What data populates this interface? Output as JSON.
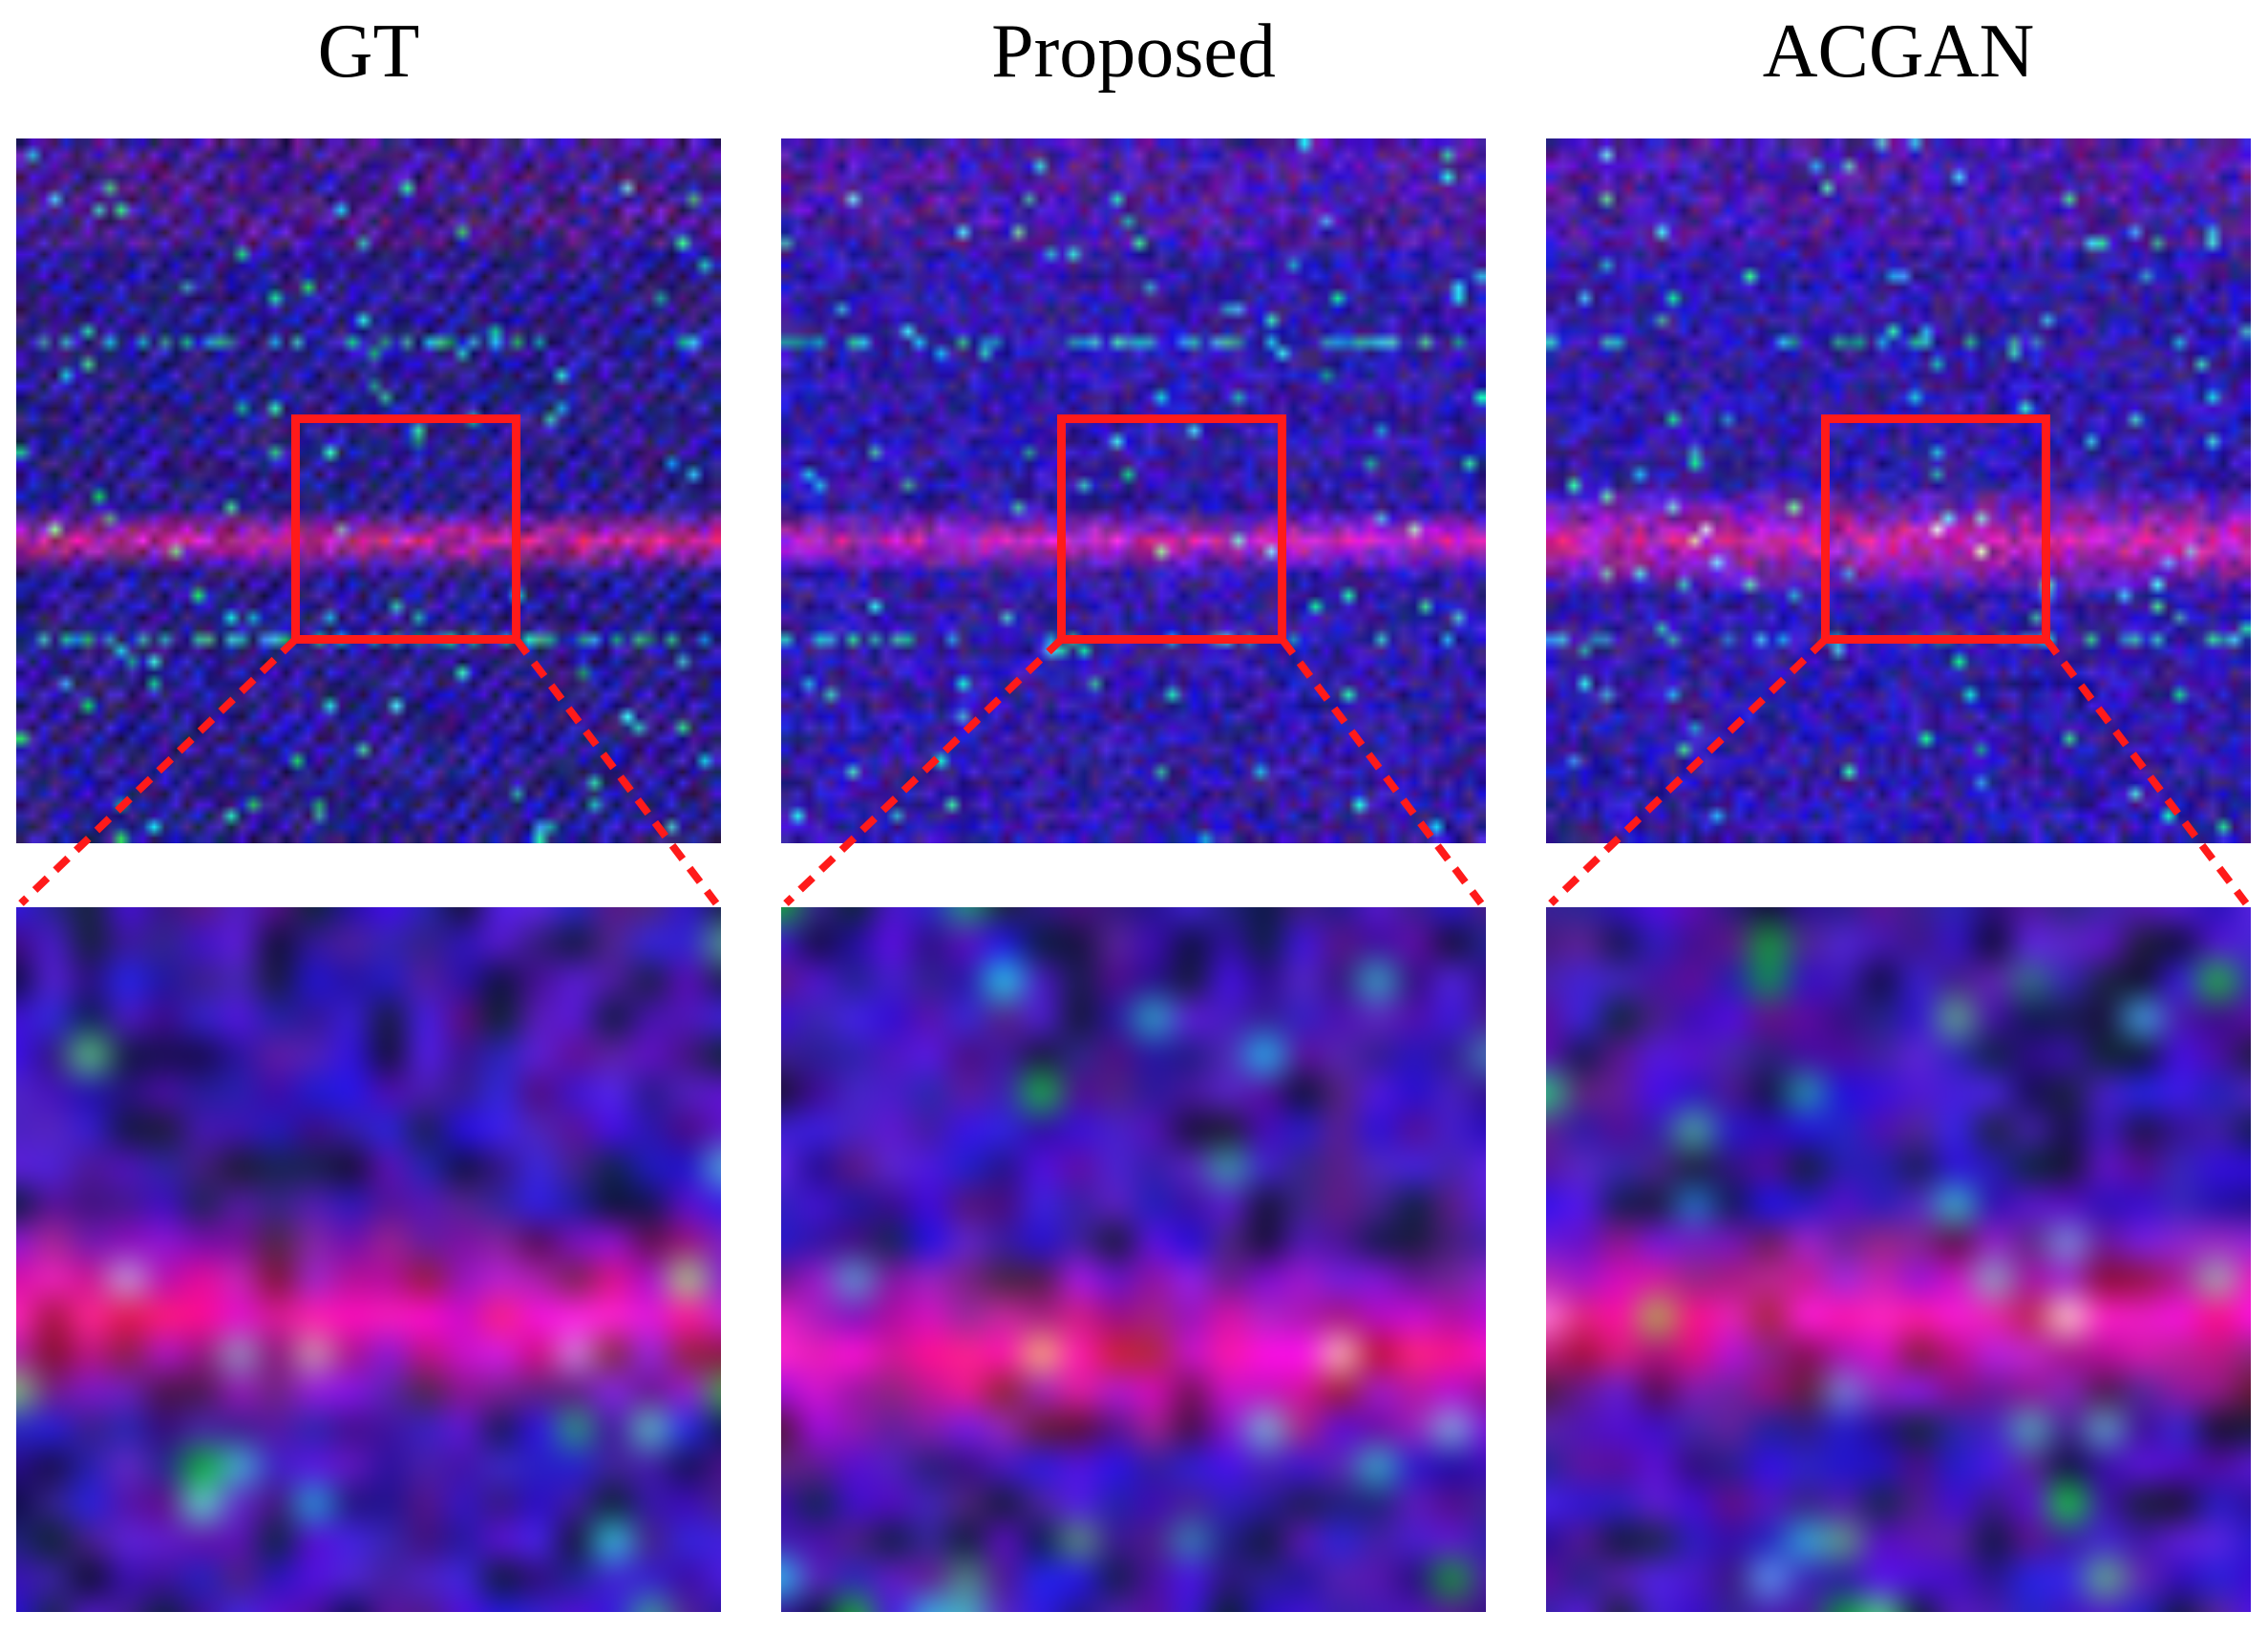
{
  "columns": [
    {
      "id": "gt",
      "label": "GT"
    },
    {
      "id": "proposed",
      "label": "Proposed"
    },
    {
      "id": "acgan",
      "label": "ACGAN"
    }
  ],
  "colors": {
    "background": "#ffffff",
    "roi_box": "#ff1a1a",
    "image_base": "#1c1c9a",
    "band_highlight": "#e0205a",
    "sparkle": "#33dd88"
  }
}
